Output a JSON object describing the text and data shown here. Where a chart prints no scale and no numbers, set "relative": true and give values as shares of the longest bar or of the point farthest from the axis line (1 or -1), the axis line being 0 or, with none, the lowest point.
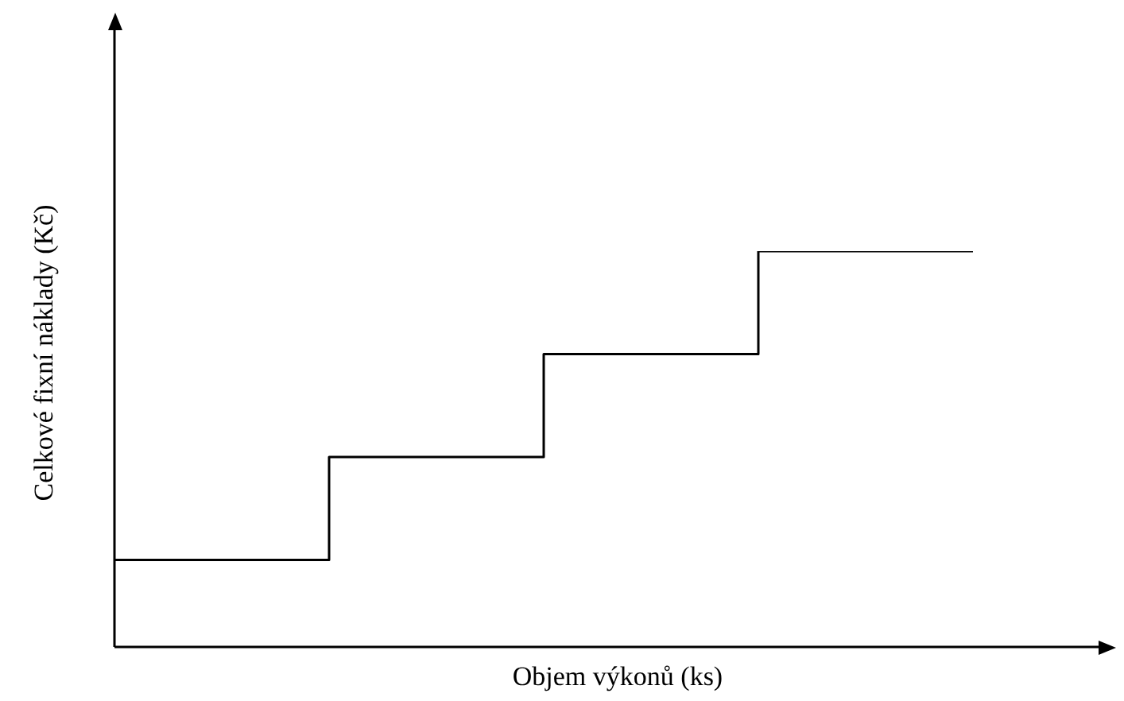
{
  "chart_data": {
    "type": "step",
    "relative": true,
    "xlabel": "Objem výkonů (ks)",
    "ylabel": "Celkové fixní náklady (Kč)",
    "categories": [
      null,
      null,
      null,
      null,
      null
    ],
    "values": [
      0.22,
      0.48,
      0.74,
      1,
      1
    ],
    "color": "#000000",
    "marker": "none",
    "legend": false
  }
}
